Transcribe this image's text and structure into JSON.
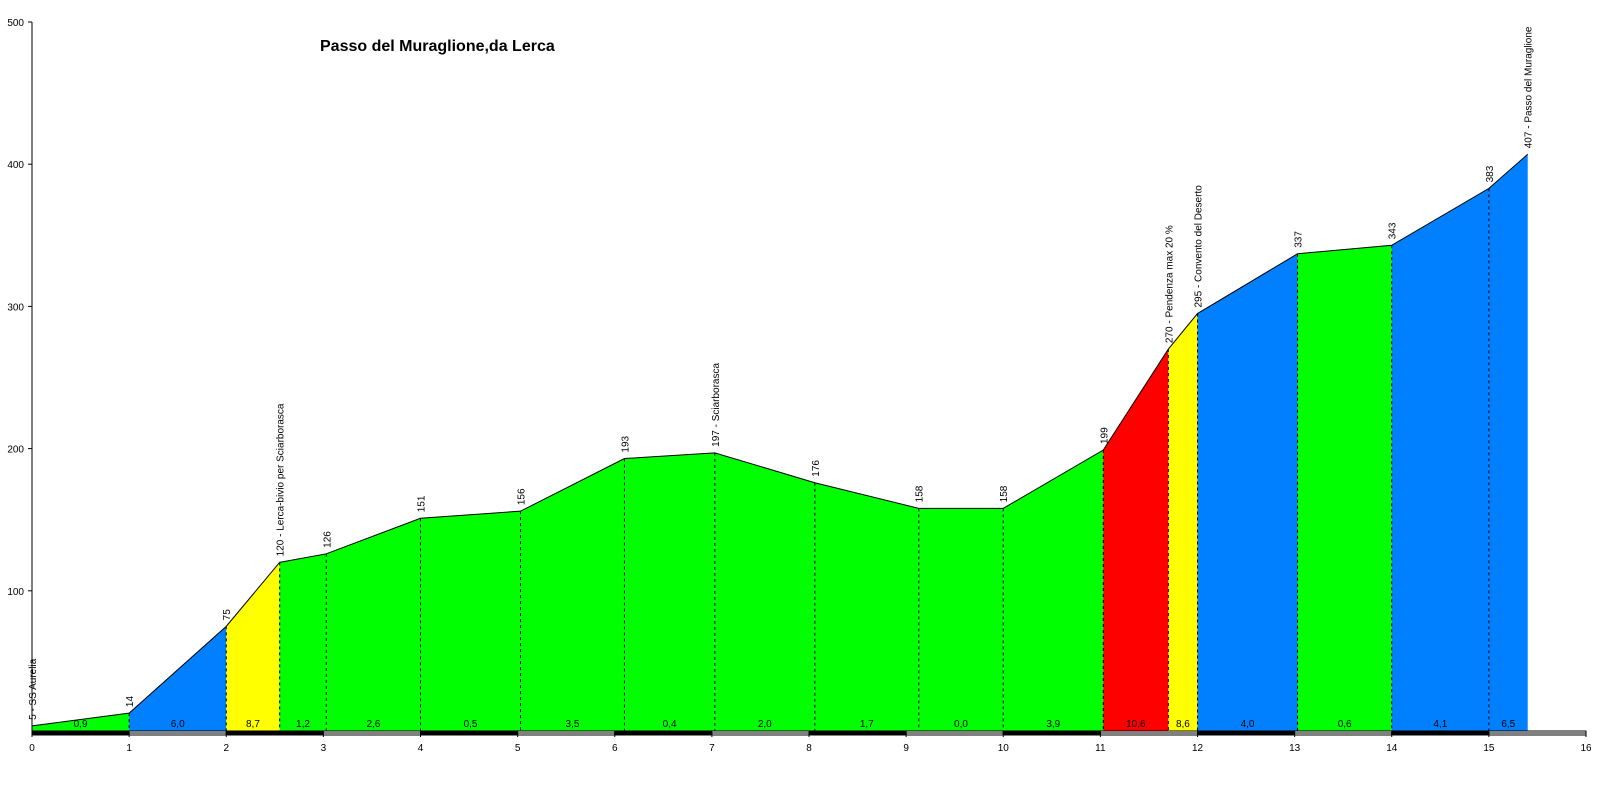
{
  "chart_data": {
    "type": "area",
    "title": "Passo del Muraglione,da Lerca",
    "xlabel": "",
    "ylabel": "",
    "xlim": [
      0,
      16
    ],
    "ylim": [
      0,
      500
    ],
    "x_ticks": [
      "0",
      "1",
      "2",
      "3",
      "4",
      "5",
      "6",
      "7",
      "8",
      "9",
      "10",
      "11",
      "12",
      "13",
      "14",
      "15",
      "16"
    ],
    "y_ticks": [
      "100",
      "200",
      "300",
      "400",
      "500"
    ],
    "grid": false,
    "points": [
      {
        "x": 0,
        "y": 5,
        "label": "5 - SS Aurelia"
      },
      {
        "x": 1,
        "y": 14,
        "label": "14"
      },
      {
        "x": 2,
        "y": 75,
        "label": "75"
      },
      {
        "x": 2.55,
        "y": 120,
        "label": "120 - Lerca-bivio per Sciarborasca"
      },
      {
        "x": 3.03,
        "y": 126,
        "label": "126"
      },
      {
        "x": 4,
        "y": 151,
        "label": "151"
      },
      {
        "x": 5.03,
        "y": 156,
        "label": "156"
      },
      {
        "x": 6.1,
        "y": 193,
        "label": "193"
      },
      {
        "x": 7.03,
        "y": 197,
        "label": "197 - Sciarborasca"
      },
      {
        "x": 8.06,
        "y": 176,
        "label": "176"
      },
      {
        "x": 9.13,
        "y": 158,
        "label": "158"
      },
      {
        "x": 10,
        "y": 158,
        "label": "158"
      },
      {
        "x": 11.03,
        "y": 199,
        "label": "199"
      },
      {
        "x": 11.7,
        "y": 270,
        "label": "270 -  Pendenza max 20 %"
      },
      {
        "x": 12,
        "y": 295,
        "label": "295 -  Convento del Deserto"
      },
      {
        "x": 13.03,
        "y": 337,
        "label": "337"
      },
      {
        "x": 14,
        "y": 343,
        "label": "343"
      },
      {
        "x": 15,
        "y": 383,
        "label": "383"
      },
      {
        "x": 15.4,
        "y": 407,
        "label": "407 - Passo del Muraglione"
      }
    ],
    "segments": [
      {
        "gradient": "0,9",
        "color": "#00ff00"
      },
      {
        "gradient": "6,0",
        "color": "#0080ff"
      },
      {
        "gradient": "8,7",
        "color": "#ffff00"
      },
      {
        "gradient": "1,2",
        "color": "#00ff00"
      },
      {
        "gradient": "2,6",
        "color": "#00ff00"
      },
      {
        "gradient": "0,5",
        "color": "#00ff00"
      },
      {
        "gradient": "3,5",
        "color": "#00ff00"
      },
      {
        "gradient": "0,4",
        "color": "#00ff00"
      },
      {
        "gradient": "2,0",
        "color": "#00ff00"
      },
      {
        "gradient": "1,7",
        "color": "#00ff00"
      },
      {
        "gradient": "0,0",
        "color": "#00ff00"
      },
      {
        "gradient": "3,9",
        "color": "#00ff00"
      },
      {
        "gradient": "10,6",
        "color": "#ff0000"
      },
      {
        "gradient": "8,6",
        "color": "#ffff00"
      },
      {
        "gradient": "4,0",
        "color": "#0080ff"
      },
      {
        "gradient": "0,6",
        "color": "#00ff00"
      },
      {
        "gradient": "4,1",
        "color": "#0080ff"
      },
      {
        "gradient": "6,5",
        "color": "#0080ff"
      }
    ]
  }
}
